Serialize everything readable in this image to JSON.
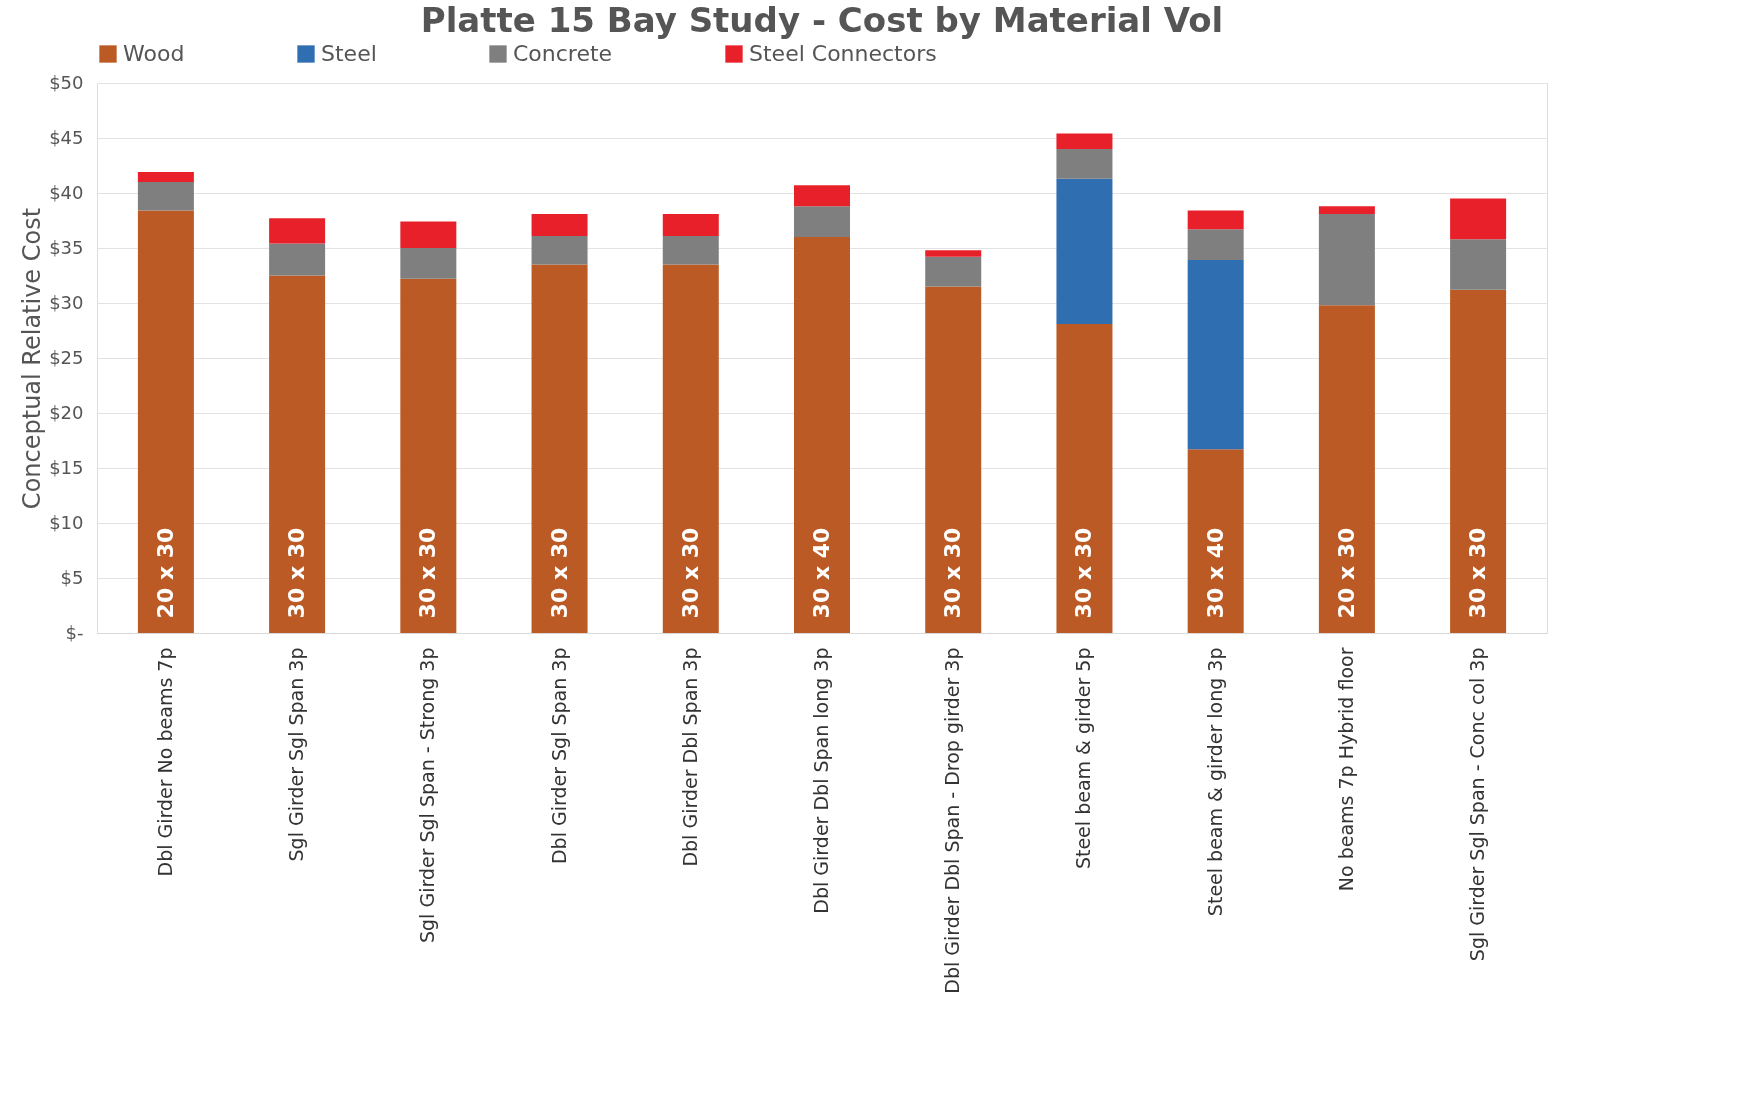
{
  "chart_data": {
    "type": "bar",
    "stacked": true,
    "title": "Platte 15 Bay Study - Cost by Material Vol",
    "ylabel": "Conceptual  Relative Cost",
    "categories": [
      "Dbl Girder No beams 7p",
      "Sgl Girder Sgl Span 3p",
      "Sgl Girder Sgl Span - Strong 3p",
      "Dbl Girder Sgl Span 3p",
      "Dbl Girder Dbl Span 3p",
      "Dbl Girder Dbl Span long 3p",
      "Dbl Girder Dbl Span - Drop girder 3p",
      "Steel beam & girder 5p",
      "Steel beam & girder long 3p",
      "No beams 7p Hybrid floor",
      "Sgl Girder Sgl Span - Conc col 3p"
    ],
    "series": [
      {
        "name": "Wood",
        "color": "#bb5a24",
        "values": [
          38.4,
          32.5,
          32.2,
          33.5,
          33.5,
          36.0,
          31.5,
          28.1,
          16.7,
          29.8,
          31.2
        ]
      },
      {
        "name": "Steel",
        "color": "#2f6eb0",
        "values": [
          0,
          0,
          0,
          0,
          0,
          0,
          0,
          13.2,
          17.2,
          0,
          0
        ]
      },
      {
        "name": "Concrete",
        "color": "#7f7f7f",
        "values": [
          2.6,
          2.9,
          2.8,
          2.6,
          2.6,
          2.8,
          2.7,
          2.7,
          2.8,
          8.3,
          4.6
        ]
      },
      {
        "name": "Steel Connectors",
        "color": "#e8202a",
        "values": [
          0.9,
          2.3,
          2.4,
          2.0,
          2.0,
          1.9,
          0.6,
          1.4,
          1.7,
          0.7,
          3.7
        ]
      }
    ],
    "ylim": [
      0,
      50
    ],
    "yticks": [
      {
        "value": 0,
        "label": "$-"
      },
      {
        "value": 5,
        "label": "$5"
      },
      {
        "value": 10,
        "label": "$10"
      },
      {
        "value": 15,
        "label": "$15"
      },
      {
        "value": 20,
        "label": "$20"
      },
      {
        "value": 25,
        "label": "$25"
      },
      {
        "value": 30,
        "label": "$30"
      },
      {
        "value": 35,
        "label": "$35"
      },
      {
        "value": 40,
        "label": "$40"
      },
      {
        "value": 45,
        "label": "$45"
      },
      {
        "value": 50,
        "label": "$50"
      }
    ],
    "annotations": [
      "20 x 30",
      "30 x 30",
      "30 x 30",
      "30 x 30",
      "30 x 30",
      "30 x 40",
      "30 x 30",
      "30 x 30",
      "30 x 40",
      "20 x 30",
      "30 x 30"
    ],
    "grid": "y",
    "legend": "top"
  }
}
